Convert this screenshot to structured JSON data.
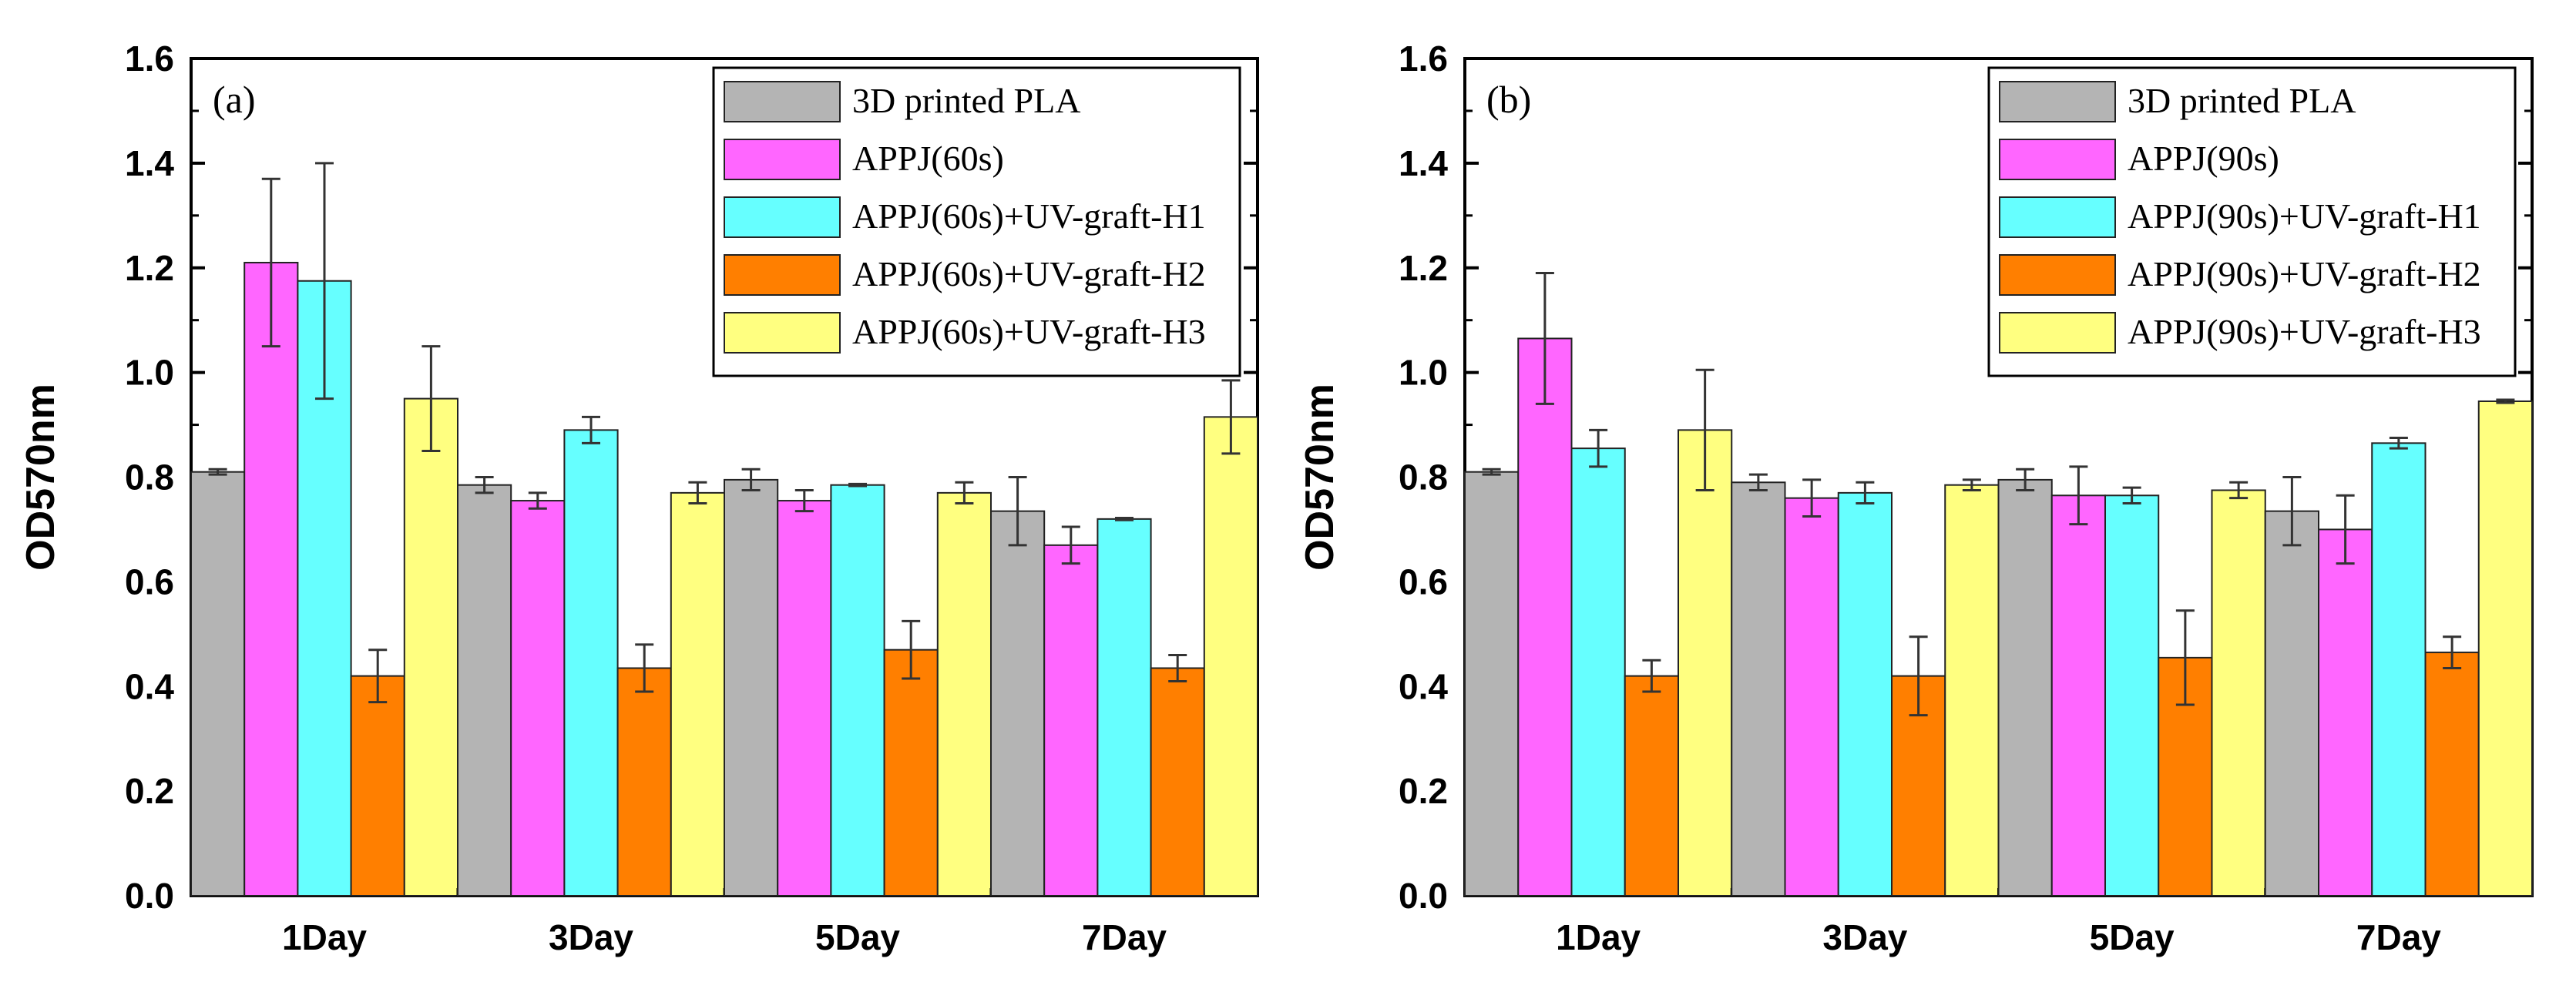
{
  "chart_data": [
    {
      "type": "bar",
      "panel_label": "(a)",
      "ylabel": "OD570nm",
      "xlabel": "",
      "ylim": [
        0,
        1.6
      ],
      "yticks": [
        "0.0",
        "0.2",
        "0.4",
        "0.6",
        "0.8",
        "1.0",
        "1.2",
        "1.4",
        "1.6"
      ],
      "categories": [
        "1Day",
        "3Day",
        "5Day",
        "7Day"
      ],
      "legend_position": "top-right",
      "series": [
        {
          "name": "3D printed PLA",
          "color": "#b4b4b4",
          "values": [
            0.81,
            0.785,
            0.795,
            0.735
          ],
          "errors": [
            0.005,
            0.015,
            0.02,
            0.065
          ]
        },
        {
          "name": "APPJ(60s)",
          "color": "#ff66ff",
          "values": [
            1.21,
            0.755,
            0.755,
            0.67
          ],
          "errors": [
            0.16,
            0.015,
            0.02,
            0.035
          ]
        },
        {
          "name": "APPJ(60s)+UV-graft-H1",
          "color": "#66ffff",
          "values": [
            1.175,
            0.89,
            0.785,
            0.72
          ],
          "errors": [
            0.225,
            0.025,
            0.002,
            0.002
          ]
        },
        {
          "name": "APPJ(60s)+UV-graft-H2",
          "color": "#ff7f00",
          "values": [
            0.42,
            0.435,
            0.47,
            0.435
          ],
          "errors": [
            0.05,
            0.045,
            0.055,
            0.025
          ]
        },
        {
          "name": "APPJ(60s)+UV-graft-H3",
          "color": "#ffff80",
          "values": [
            0.95,
            0.77,
            0.77,
            0.915
          ],
          "errors": [
            0.1,
            0.02,
            0.02,
            0.07
          ]
        }
      ]
    },
    {
      "type": "bar",
      "panel_label": "(b)",
      "ylabel": "OD570nm",
      "xlabel": "",
      "ylim": [
        0,
        1.6
      ],
      "yticks": [
        "0.0",
        "0.2",
        "0.4",
        "0.6",
        "0.8",
        "1.0",
        "1.2",
        "1.4",
        "1.6"
      ],
      "categories": [
        "1Day",
        "3Day",
        "5Day",
        "7Day"
      ],
      "legend_position": "top-right",
      "series": [
        {
          "name": "3D printed PLA",
          "color": "#b4b4b4",
          "values": [
            0.81,
            0.79,
            0.795,
            0.735
          ],
          "errors": [
            0.005,
            0.015,
            0.02,
            0.065
          ]
        },
        {
          "name": "APPJ(90s)",
          "color": "#ff66ff",
          "values": [
            1.065,
            0.76,
            0.765,
            0.7
          ],
          "errors": [
            0.125,
            0.035,
            0.055,
            0.065
          ]
        },
        {
          "name": "APPJ(90s)+UV-graft-H1",
          "color": "#66ffff",
          "values": [
            0.855,
            0.77,
            0.765,
            0.865
          ],
          "errors": [
            0.035,
            0.02,
            0.015,
            0.01
          ]
        },
        {
          "name": "APPJ(90s)+UV-graft-H2",
          "color": "#ff7f00",
          "values": [
            0.42,
            0.42,
            0.455,
            0.465
          ],
          "errors": [
            0.03,
            0.075,
            0.09,
            0.03
          ]
        },
        {
          "name": "APPJ(90s)+UV-graft-H3",
          "color": "#ffff80",
          "values": [
            0.89,
            0.785,
            0.775,
            0.945
          ],
          "errors": [
            0.115,
            0.01,
            0.015,
            0.003
          ]
        }
      ]
    }
  ]
}
